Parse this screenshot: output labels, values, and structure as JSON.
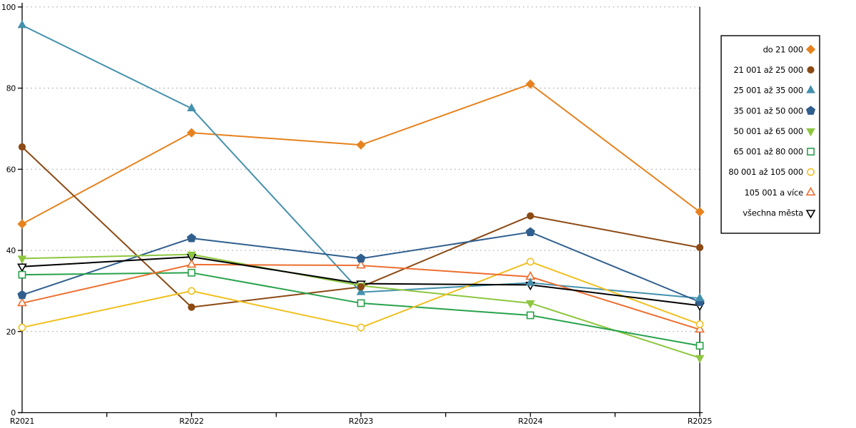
{
  "chart_data": {
    "type": "line",
    "title": "",
    "xlabel": "",
    "ylabel": "",
    "categories": [
      "R2021",
      "R2022",
      "R2023",
      "R2024",
      "R2025"
    ],
    "ylim": [
      0,
      100
    ],
    "yticks": [
      0,
      20,
      40,
      60,
      80,
      100
    ],
    "grid": "horizontal-dashed",
    "legend_position": "outside-right",
    "series": [
      {
        "name": "do 21 000",
        "marker": "diamond",
        "filled": true,
        "color": "#e6821e",
        "values": [
          46.5,
          69,
          66,
          81,
          49.5
        ]
      },
      {
        "name": "21 001 až 25 000",
        "marker": "circle",
        "filled": true,
        "color": "#8c4a14",
        "values": [
          65.5,
          26,
          31,
          48.5,
          40.7
        ]
      },
      {
        "name": "25 001 až 35 000",
        "marker": "triangle-up",
        "filled": true,
        "color": "#4591ae",
        "values": [
          95.5,
          75,
          29.7,
          32,
          28.2
        ]
      },
      {
        "name": "35 001 až 50 000",
        "marker": "pentagon",
        "filled": true,
        "color": "#305f8e",
        "values": [
          29,
          43,
          38,
          44.5,
          27.3
        ]
      },
      {
        "name": "50 001 až 65 000",
        "marker": "triangle-down",
        "filled": true,
        "color": "#8dc63f",
        "values": [
          38,
          39,
          31.3,
          27,
          13.5
        ]
      },
      {
        "name": "65 001 až 80 000",
        "marker": "square",
        "filled": false,
        "color": "#28a24c",
        "values": [
          34,
          34.5,
          27,
          24,
          16.5
        ]
      },
      {
        "name": "80 001 až 105 000",
        "marker": "circle",
        "filled": false,
        "color": "#f0c020",
        "values": [
          21,
          30,
          21,
          37.2,
          21.8
        ]
      },
      {
        "name": "105 001 a více",
        "marker": "triangle-up",
        "filled": false,
        "color": "#ec6f30",
        "values": [
          27,
          36.5,
          36.3,
          33.5,
          20.5
        ]
      },
      {
        "name": "všechna města",
        "marker": "triangle-down",
        "filled": false,
        "color": "#000000",
        "values": [
          36,
          38.4,
          31.8,
          31.5,
          26.4
        ]
      }
    ]
  },
  "colors": {
    "background": "#ffffff",
    "grid": "#b0b0b0",
    "axis": "#000000",
    "legend_border": "#000000",
    "legend_background": "#ffffff"
  }
}
